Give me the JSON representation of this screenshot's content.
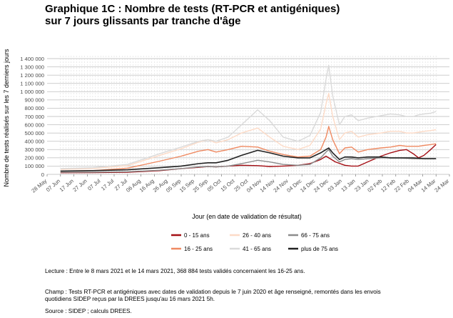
{
  "title": {
    "line1": "Graphique 1C : Nombre de tests (RT-PCR et antigéniques)",
    "line2": "sur 7 jours glissants par tranche d'âge"
  },
  "notes": {
    "lecture": "Lecture : Entre le 8 mars 2021 et le 14 mars 2021, 368 884 tests validés concernaient les 16-25 ans.",
    "champ1": "Champ : Tests RT-PCR et antigéniques avec dates de validation depuis le 7 juin 2020 et âge renseigné, remontés dans les envois",
    "champ2": "quotidiens SIDEP reçus par la DREES jusqu'au 16 mars 2021 5h.",
    "source": "Source : SIDEP ; calculs DREES."
  },
  "chart_data": {
    "type": "line",
    "xlabel": "Jour (en date de validation de résultat)",
    "ylabel": "Nombre de tests réalisés sur les 7 derniers jours",
    "xlim": [
      "2020-05-28",
      "2021-03-24"
    ],
    "ylim": [
      0,
      1400000
    ],
    "x_ticks": [
      "28 May",
      "07 Jun",
      "17 Jun",
      "27 Jun",
      "07 Jul",
      "17 Jul",
      "27 Jul",
      "06 Aug",
      "16 Aug",
      "26 Aug",
      "05 Sep",
      "15 Sep",
      "25 Sep",
      "05 Oct",
      "15 Oct",
      "25 Oct",
      "04 Nov",
      "14 Nov",
      "24 Nov",
      "04 Dec",
      "14 Dec",
      "24 Dec",
      "03 Jan",
      "13 Jan",
      "23 Jan",
      "02 Feb",
      "12 Feb",
      "22 Feb",
      "04 Mar",
      "14 Mar",
      "24 Mar"
    ],
    "y_ticks": [
      "0",
      "100 000",
      "200 000",
      "300 000",
      "400 000",
      "500 000",
      "600 000",
      "700 000",
      "800 000",
      "900 000",
      "1 000 000",
      "1 100 000",
      "1 200 000",
      "1 300 000",
      "1 400 000"
    ],
    "legend_position": "bottom",
    "series": [
      {
        "name": "0 - 15 ans",
        "color": "#a50f15",
        "width": 1.4,
        "points": [
          [
            "2020-06-07",
            20000
          ],
          [
            "2020-07-01",
            22000
          ],
          [
            "2020-07-27",
            26000
          ],
          [
            "2020-08-20",
            45000
          ],
          [
            "2020-09-05",
            70000
          ],
          [
            "2020-09-18",
            85000
          ],
          [
            "2020-09-25",
            95000
          ],
          [
            "2020-10-01",
            90000
          ],
          [
            "2020-10-10",
            100000
          ],
          [
            "2020-10-20",
            110000
          ],
          [
            "2020-11-01",
            105000
          ],
          [
            "2020-11-10",
            95000
          ],
          [
            "2020-11-20",
            100000
          ],
          [
            "2020-12-01",
            110000
          ],
          [
            "2020-12-10",
            130000
          ],
          [
            "2020-12-18",
            180000
          ],
          [
            "2020-12-22",
            220000
          ],
          [
            "2020-12-24",
            200000
          ],
          [
            "2020-12-29",
            150000
          ],
          [
            "2021-01-05",
            110000
          ],
          [
            "2021-01-10",
            100000
          ],
          [
            "2021-01-15",
            100000
          ],
          [
            "2021-01-22",
            150000
          ],
          [
            "2021-02-01",
            220000
          ],
          [
            "2021-02-08",
            260000
          ],
          [
            "2021-02-15",
            290000
          ],
          [
            "2021-02-20",
            300000
          ],
          [
            "2021-02-25",
            250000
          ],
          [
            "2021-03-01",
            200000
          ],
          [
            "2021-03-05",
            230000
          ],
          [
            "2021-03-10",
            300000
          ],
          [
            "2021-03-14",
            360000
          ]
        ]
      },
      {
        "name": "16 - 25 ans",
        "color": "#ef8a62",
        "width": 1.4,
        "points": [
          [
            "2020-06-07",
            40000
          ],
          [
            "2020-07-01",
            45000
          ],
          [
            "2020-07-27",
            75000
          ],
          [
            "2020-08-20",
            160000
          ],
          [
            "2020-09-05",
            220000
          ],
          [
            "2020-09-18",
            280000
          ],
          [
            "2020-09-25",
            300000
          ],
          [
            "2020-10-01",
            270000
          ],
          [
            "2020-10-10",
            300000
          ],
          [
            "2020-10-20",
            340000
          ],
          [
            "2020-11-01",
            330000
          ],
          [
            "2020-11-10",
            280000
          ],
          [
            "2020-11-20",
            240000
          ],
          [
            "2020-12-01",
            210000
          ],
          [
            "2020-12-10",
            220000
          ],
          [
            "2020-12-18",
            300000
          ],
          [
            "2020-12-22",
            450000
          ],
          [
            "2020-12-24",
            580000
          ],
          [
            "2020-12-27",
            420000
          ],
          [
            "2021-01-01",
            250000
          ],
          [
            "2021-01-05",
            320000
          ],
          [
            "2021-01-10",
            330000
          ],
          [
            "2021-01-15",
            270000
          ],
          [
            "2021-01-22",
            300000
          ],
          [
            "2021-02-01",
            320000
          ],
          [
            "2021-02-08",
            330000
          ],
          [
            "2021-02-15",
            350000
          ],
          [
            "2021-02-20",
            340000
          ],
          [
            "2021-02-25",
            340000
          ],
          [
            "2021-03-01",
            340000
          ],
          [
            "2021-03-05",
            350000
          ],
          [
            "2021-03-10",
            360000
          ],
          [
            "2021-03-14",
            370000
          ]
        ]
      },
      {
        "name": "26 - 40 ans",
        "color": "#fddbc7",
        "width": 1.4,
        "points": [
          [
            "2020-06-07",
            60000
          ],
          [
            "2020-07-01",
            70000
          ],
          [
            "2020-07-27",
            105000
          ],
          [
            "2020-08-20",
            230000
          ],
          [
            "2020-09-05",
            310000
          ],
          [
            "2020-09-18",
            390000
          ],
          [
            "2020-09-25",
            420000
          ],
          [
            "2020-10-01",
            380000
          ],
          [
            "2020-10-10",
            420000
          ],
          [
            "2020-10-20",
            500000
          ],
          [
            "2020-11-01",
            560000
          ],
          [
            "2020-11-10",
            450000
          ],
          [
            "2020-11-20",
            340000
          ],
          [
            "2020-12-01",
            300000
          ],
          [
            "2020-12-10",
            350000
          ],
          [
            "2020-12-18",
            550000
          ],
          [
            "2020-12-22",
            850000
          ],
          [
            "2020-12-24",
            980000
          ],
          [
            "2020-12-27",
            700000
          ],
          [
            "2021-01-01",
            420000
          ],
          [
            "2021-01-05",
            500000
          ],
          [
            "2021-01-10",
            520000
          ],
          [
            "2021-01-15",
            450000
          ],
          [
            "2021-01-22",
            480000
          ],
          [
            "2021-02-01",
            500000
          ],
          [
            "2021-02-08",
            520000
          ],
          [
            "2021-02-15",
            520000
          ],
          [
            "2021-02-20",
            500000
          ],
          [
            "2021-02-25",
            500000
          ],
          [
            "2021-03-01",
            510000
          ],
          [
            "2021-03-05",
            520000
          ],
          [
            "2021-03-10",
            530000
          ],
          [
            "2021-03-14",
            540000
          ]
        ]
      },
      {
        "name": "41 - 65 ans",
        "color": "#dadada",
        "width": 1.4,
        "points": [
          [
            "2020-06-07",
            70000
          ],
          [
            "2020-07-01",
            80000
          ],
          [
            "2020-07-27",
            120000
          ],
          [
            "2020-08-20",
            250000
          ],
          [
            "2020-09-05",
            330000
          ],
          [
            "2020-09-18",
            400000
          ],
          [
            "2020-09-25",
            420000
          ],
          [
            "2020-10-01",
            400000
          ],
          [
            "2020-10-10",
            450000
          ],
          [
            "2020-10-20",
            600000
          ],
          [
            "2020-11-01",
            780000
          ],
          [
            "2020-11-10",
            650000
          ],
          [
            "2020-11-20",
            450000
          ],
          [
            "2020-12-01",
            400000
          ],
          [
            "2020-12-10",
            470000
          ],
          [
            "2020-12-18",
            750000
          ],
          [
            "2020-12-22",
            1150000
          ],
          [
            "2020-12-24",
            1320000
          ],
          [
            "2020-12-27",
            950000
          ],
          [
            "2021-01-01",
            600000
          ],
          [
            "2021-01-05",
            700000
          ],
          [
            "2021-01-10",
            720000
          ],
          [
            "2021-01-15",
            650000
          ],
          [
            "2021-01-22",
            680000
          ],
          [
            "2021-02-01",
            710000
          ],
          [
            "2021-02-08",
            730000
          ],
          [
            "2021-02-15",
            720000
          ],
          [
            "2021-02-20",
            700000
          ],
          [
            "2021-02-25",
            700000
          ],
          [
            "2021-03-01",
            720000
          ],
          [
            "2021-03-05",
            730000
          ],
          [
            "2021-03-10",
            740000
          ],
          [
            "2021-03-14",
            760000
          ]
        ]
      },
      {
        "name": "66 - 75 ans",
        "color": "#8c8c8c",
        "width": 1.4,
        "points": [
          [
            "2020-06-07",
            25000
          ],
          [
            "2020-07-01",
            27000
          ],
          [
            "2020-07-27",
            32000
          ],
          [
            "2020-08-20",
            50000
          ],
          [
            "2020-09-05",
            70000
          ],
          [
            "2020-09-18",
            90000
          ],
          [
            "2020-09-25",
            95000
          ],
          [
            "2020-10-01",
            90000
          ],
          [
            "2020-10-10",
            100000
          ],
          [
            "2020-10-20",
            130000
          ],
          [
            "2020-11-01",
            170000
          ],
          [
            "2020-11-10",
            150000
          ],
          [
            "2020-11-20",
            120000
          ],
          [
            "2020-12-01",
            110000
          ],
          [
            "2020-12-10",
            120000
          ],
          [
            "2020-12-18",
            200000
          ],
          [
            "2020-12-22",
            270000
          ],
          [
            "2020-12-24",
            300000
          ],
          [
            "2020-12-27",
            220000
          ],
          [
            "2021-01-01",
            150000
          ],
          [
            "2021-01-05",
            180000
          ],
          [
            "2021-01-10",
            190000
          ],
          [
            "2021-01-15",
            180000
          ],
          [
            "2021-01-22",
            190000
          ],
          [
            "2021-02-01",
            200000
          ],
          [
            "2021-02-08",
            200000
          ],
          [
            "2021-02-15",
            200000
          ],
          [
            "2021-02-20",
            195000
          ],
          [
            "2021-02-25",
            190000
          ],
          [
            "2021-03-01",
            190000
          ],
          [
            "2021-03-05",
            190000
          ],
          [
            "2021-03-10",
            190000
          ],
          [
            "2021-03-14",
            190000
          ]
        ]
      },
      {
        "name": "plus de 75 ans",
        "color": "#222222",
        "width": 1.6,
        "points": [
          [
            "2020-06-07",
            40000
          ],
          [
            "2020-07-01",
            45000
          ],
          [
            "2020-07-27",
            55000
          ],
          [
            "2020-08-20",
            80000
          ],
          [
            "2020-09-05",
            100000
          ],
          [
            "2020-09-18",
            130000
          ],
          [
            "2020-09-25",
            140000
          ],
          [
            "2020-10-01",
            140000
          ],
          [
            "2020-10-10",
            170000
          ],
          [
            "2020-10-20",
            230000
          ],
          [
            "2020-11-01",
            290000
          ],
          [
            "2020-11-10",
            260000
          ],
          [
            "2020-11-20",
            220000
          ],
          [
            "2020-12-01",
            200000
          ],
          [
            "2020-12-10",
            200000
          ],
          [
            "2020-12-18",
            260000
          ],
          [
            "2020-12-22",
            300000
          ],
          [
            "2020-12-24",
            320000
          ],
          [
            "2020-12-27",
            260000
          ],
          [
            "2021-01-01",
            180000
          ],
          [
            "2021-01-05",
            210000
          ],
          [
            "2021-01-10",
            210000
          ],
          [
            "2021-01-15",
            200000
          ],
          [
            "2021-01-22",
            210000
          ],
          [
            "2021-02-01",
            210000
          ],
          [
            "2021-02-08",
            200000
          ],
          [
            "2021-02-15",
            200000
          ],
          [
            "2021-02-20",
            200000
          ],
          [
            "2021-02-25",
            200000
          ],
          [
            "2021-03-01",
            195000
          ],
          [
            "2021-03-05",
            190000
          ],
          [
            "2021-03-10",
            190000
          ],
          [
            "2021-03-14",
            190000
          ]
        ]
      }
    ]
  }
}
